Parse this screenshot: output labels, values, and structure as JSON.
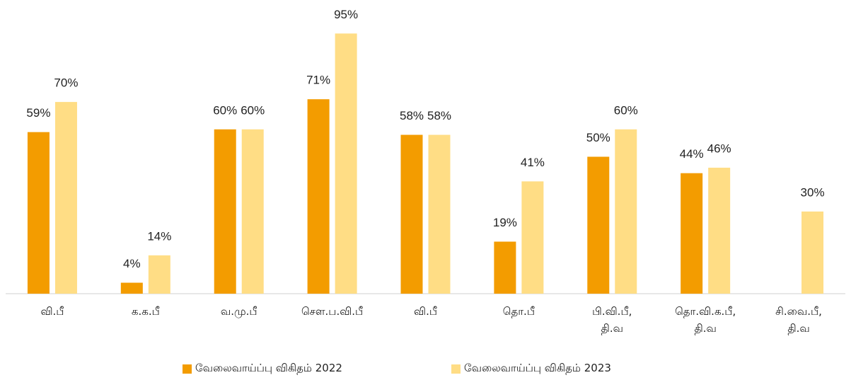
{
  "chart_data": {
    "type": "bar",
    "categories": [
      "வி.பீ",
      "க.க.பீ",
      "வ.மு.பீ",
      "சௌ.ப.வி.பீ",
      "வி.பீ",
      "தொ.பீ",
      "பி.வி.பீ,\nதி.வ",
      "தொ.வி.க.பீ,\nதி.வ",
      "சி.வை.பீ,\nதி.வ"
    ],
    "series": [
      {
        "name": "வேலைவாய்ப்பு விகிதம் 2022",
        "color": "#f39c00",
        "values": [
          59,
          4,
          60,
          71,
          58,
          19,
          50,
          44,
          null
        ],
        "value_labels": [
          "59%",
          "4%",
          "60%",
          "71%",
          "58%",
          "19%",
          "50%",
          "44%",
          null
        ]
      },
      {
        "name": "வேலைவாய்ப்பு விகிதம் 2023",
        "color": "#ffdd85",
        "values": [
          70,
          14,
          60,
          95,
          58,
          41,
          60,
          46,
          30
        ],
        "value_labels": [
          "70%",
          "14%",
          "60%",
          "95%",
          "58%",
          "41%",
          "60%",
          "46%",
          "30%"
        ]
      }
    ],
    "ylim": [
      0,
      100
    ],
    "grid": false,
    "legend": "bottom"
  }
}
